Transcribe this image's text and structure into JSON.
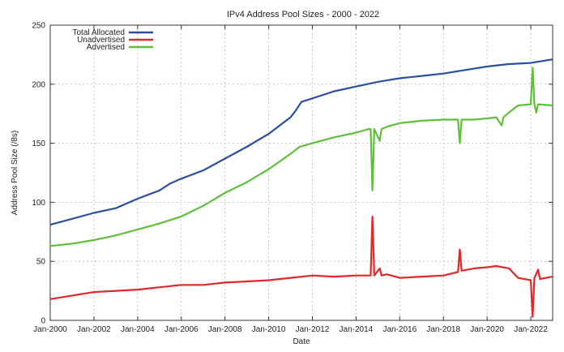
{
  "chart_data": {
    "type": "line",
    "title": "IPv4 Address Pool Sizes - 2000 - 2022",
    "xlabel": "Date",
    "ylabel": "Address Pool Size (/8s)",
    "ylim": [
      0,
      250
    ],
    "xlim": [
      "2000-01",
      "2023-01"
    ],
    "y_ticks": [
      0,
      50,
      100,
      150,
      200,
      250
    ],
    "x_ticks": [
      "Jan-2000",
      "Jan-2002",
      "Jan-2004",
      "Jan-2006",
      "Jan-2008",
      "Jan-2010",
      "Jan-2012",
      "Jan-2014",
      "Jan-2016",
      "Jan-2018",
      "Jan-2020",
      "Jan-2022"
    ],
    "grid": true,
    "legend_position": "top-left",
    "series": [
      {
        "name": "Total Allocated",
        "color": "#2b4fa3",
        "points": [
          [
            "2000-01",
            81
          ],
          [
            "2001-01",
            86
          ],
          [
            "2002-01",
            91
          ],
          [
            "2003-01",
            95
          ],
          [
            "2004-01",
            103
          ],
          [
            "2005-01",
            110
          ],
          [
            "2005-07",
            116
          ],
          [
            "2006-01",
            120
          ],
          [
            "2007-01",
            127
          ],
          [
            "2008-01",
            137
          ],
          [
            "2009-01",
            147
          ],
          [
            "2010-01",
            158
          ],
          [
            "2011-01",
            172
          ],
          [
            "2011-04",
            178
          ],
          [
            "2011-07",
            185
          ],
          [
            "2012-01",
            188
          ],
          [
            "2013-01",
            194
          ],
          [
            "2014-01",
            198
          ],
          [
            "2015-01",
            202
          ],
          [
            "2016-01",
            205
          ],
          [
            "2017-01",
            207
          ],
          [
            "2018-01",
            209
          ],
          [
            "2019-01",
            212
          ],
          [
            "2020-01",
            215
          ],
          [
            "2021-01",
            217
          ],
          [
            "2022-01",
            218
          ],
          [
            "2023-01",
            221
          ]
        ]
      },
      {
        "name": "Unadvertised",
        "color": "#e02828",
        "points": [
          [
            "2000-01",
            18
          ],
          [
            "2001-01",
            21
          ],
          [
            "2002-01",
            24
          ],
          [
            "2003-01",
            25
          ],
          [
            "2004-01",
            26
          ],
          [
            "2005-01",
            28
          ],
          [
            "2006-01",
            30
          ],
          [
            "2007-01",
            30
          ],
          [
            "2008-01",
            32
          ],
          [
            "2009-01",
            33
          ],
          [
            "2010-01",
            34
          ],
          [
            "2011-01",
            36
          ],
          [
            "2012-01",
            38
          ],
          [
            "2013-01",
            37
          ],
          [
            "2014-01",
            38
          ],
          [
            "2014-09",
            38
          ],
          [
            "2014-10",
            88
          ],
          [
            "2014-11",
            38
          ],
          [
            "2015-02",
            44
          ],
          [
            "2015-03",
            38
          ],
          [
            "2015-06",
            39
          ],
          [
            "2016-01",
            36
          ],
          [
            "2017-01",
            37
          ],
          [
            "2018-01",
            38
          ],
          [
            "2018-09",
            41
          ],
          [
            "2018-10",
            60
          ],
          [
            "2018-11",
            42
          ],
          [
            "2019-06",
            44
          ],
          [
            "2020-01",
            45
          ],
          [
            "2020-06",
            46
          ],
          [
            "2021-01",
            44
          ],
          [
            "2021-06",
            36
          ],
          [
            "2022-01",
            34
          ],
          [
            "2022-02",
            3
          ],
          [
            "2022-03",
            36
          ],
          [
            "2022-05",
            43
          ],
          [
            "2022-06",
            35
          ],
          [
            "2023-01",
            37
          ]
        ]
      },
      {
        "name": "Advertised",
        "color": "#5fbf3a",
        "points": [
          [
            "2000-01",
            63
          ],
          [
            "2001-01",
            65
          ],
          [
            "2002-01",
            68
          ],
          [
            "2003-01",
            72
          ],
          [
            "2004-01",
            77
          ],
          [
            "2005-01",
            82
          ],
          [
            "2006-01",
            88
          ],
          [
            "2007-01",
            97
          ],
          [
            "2008-01",
            108
          ],
          [
            "2009-01",
            117
          ],
          [
            "2010-01",
            128
          ],
          [
            "2011-01",
            141
          ],
          [
            "2011-06",
            147
          ],
          [
            "2012-01",
            150
          ],
          [
            "2013-01",
            155
          ],
          [
            "2014-01",
            159
          ],
          [
            "2014-08",
            162
          ],
          [
            "2014-09",
            162
          ],
          [
            "2014-10",
            110
          ],
          [
            "2014-11",
            162
          ],
          [
            "2015-02",
            152
          ],
          [
            "2015-03",
            162
          ],
          [
            "2015-06",
            164
          ],
          [
            "2016-01",
            167
          ],
          [
            "2017-01",
            169
          ],
          [
            "2018-01",
            170
          ],
          [
            "2018-09",
            170
          ],
          [
            "2018-10",
            150
          ],
          [
            "2018-11",
            170
          ],
          [
            "2019-06",
            170
          ],
          [
            "2020-01",
            171
          ],
          [
            "2020-06",
            172
          ],
          [
            "2020-09",
            165
          ],
          [
            "2020-10",
            172
          ],
          [
            "2021-01",
            176
          ],
          [
            "2021-06",
            182
          ],
          [
            "2022-01",
            183
          ],
          [
            "2022-02",
            214
          ],
          [
            "2022-03",
            183
          ],
          [
            "2022-04",
            176
          ],
          [
            "2022-05",
            183
          ],
          [
            "2023-01",
            182
          ]
        ]
      }
    ]
  }
}
